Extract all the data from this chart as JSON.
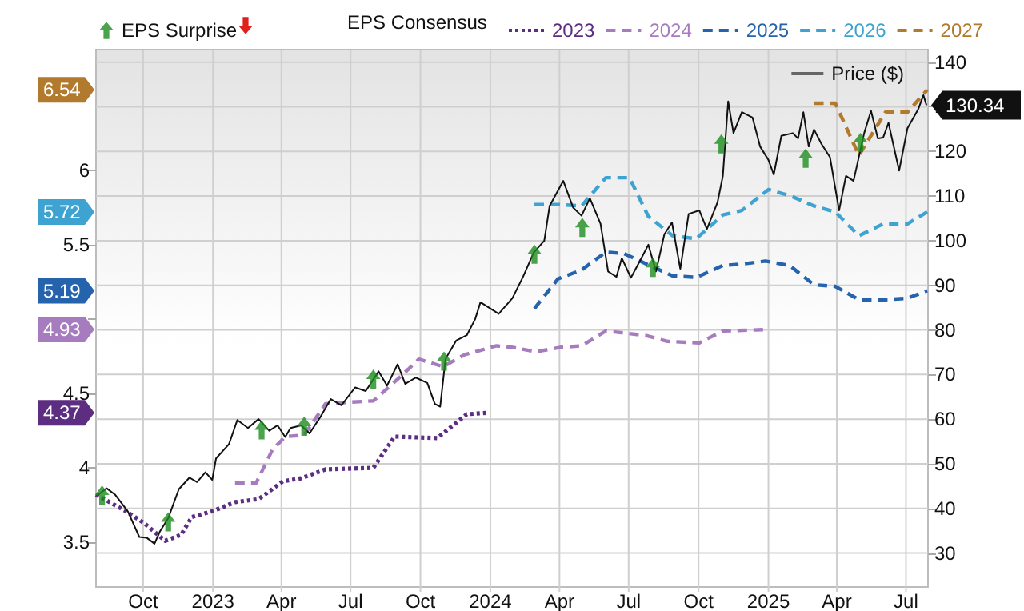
{
  "chart_data": {
    "type": "line",
    "legend_title": "EPS Consensus",
    "legend": "top",
    "grid": true,
    "xlim": [
      "2022-07-31",
      "2025-07-30"
    ],
    "xticks": [
      {
        "value": "2022-10-01",
        "label": "Oct"
      },
      {
        "value": "2023-01-01",
        "label": "2023"
      },
      {
        "value": "2023-04-01",
        "label": "Apr"
      },
      {
        "value": "2023-07-01",
        "label": "Jul"
      },
      {
        "value": "2023-10-01",
        "label": "Oct"
      },
      {
        "value": "2024-01-01",
        "label": "2024"
      },
      {
        "value": "2024-04-01",
        "label": "Apr"
      },
      {
        "value": "2024-07-01",
        "label": "Jul"
      },
      {
        "value": "2024-10-01",
        "label": "Oct"
      },
      {
        "value": "2025-01-01",
        "label": "2025"
      },
      {
        "value": "2025-04-01",
        "label": "Apr"
      },
      {
        "value": "2025-07-01",
        "label": "Jul"
      }
    ],
    "ylim": [
      3.2,
      6.81
    ],
    "yticks": [
      3.5,
      4,
      4.5,
      {
        "value": 5,
        "label": null
      },
      5.5,
      6
    ],
    "y2lim": [
      22.4,
      142.8
    ],
    "annotations": [
      "4.37",
      "4.93",
      "5.19",
      "5.72",
      "6.54"
    ],
    "y2ticks": [
      30,
      40,
      50,
      60,
      70,
      80,
      90,
      100,
      110,
      120,
      130,
      140
    ],
    "series": [
      {
        "name": "EPS Surprise",
        "type": "scatter",
        "axis": "y2",
        "marker": "triangle",
        "color": "#1e8c1e",
        "x": [
          "2022-08-08",
          "2022-11-03",
          "2023-03-06",
          "2023-05-01",
          "2023-07-31",
          "2023-11-01",
          "2024-02-28",
          "2024-05-01",
          "2024-08-02",
          "2024-10-31",
          "2025-02-19",
          "2025-05-02"
        ],
        "values": [
          43,
          37,
          57.6,
          58.4,
          69,
          73,
          97,
          103,
          94,
          121.7,
          118.5,
          122
        ]
      },
      {
        "name": "2023",
        "line_style": "dotted",
        "color": "#5c2d80",
        "x": [
          "2022-07-31",
          "2022-09-08",
          "2022-10-02",
          "2022-10-30",
          "2022-11-20",
          "2022-12-04",
          "2023-01-01",
          "2023-01-30",
          "2023-03-02",
          "2023-04-03",
          "2023-04-27",
          "2023-05-29",
          "2023-07-31",
          "2023-08-28",
          "2023-10-23",
          "2023-12-01",
          "2023-12-29"
        ],
        "values": [
          3.82,
          3.71,
          3.63,
          3.51,
          3.55,
          3.67,
          3.71,
          3.77,
          3.79,
          3.91,
          3.93,
          3.99,
          4.0,
          4.21,
          4.2,
          4.36,
          4.37
        ]
      },
      {
        "name": "2024",
        "line_style": "dashed",
        "color": "#a67cbf",
        "x": [
          "2023-01-30",
          "2023-02-27",
          "2023-03-20",
          "2023-04-06",
          "2023-05-01",
          "2023-05-29",
          "2023-06-26",
          "2023-07-31",
          "2023-09-04",
          "2023-09-29",
          "2023-10-31",
          "2023-11-28",
          "2024-01-09",
          "2024-01-30",
          "2024-03-01",
          "2024-04-02",
          "2024-04-30",
          "2024-06-01",
          "2024-07-23",
          "2024-08-21",
          "2024-10-02",
          "2024-11-02",
          "2025-01-01"
        ],
        "values": [
          3.9,
          3.9,
          4.12,
          4.21,
          4.22,
          4.43,
          4.44,
          4.45,
          4.61,
          4.73,
          4.68,
          4.76,
          4.82,
          4.81,
          4.78,
          4.81,
          4.82,
          4.92,
          4.89,
          4.85,
          4.84,
          4.92,
          4.93
        ]
      },
      {
        "name": "2025",
        "line_style": "dashed",
        "color": "#2563ad",
        "x": [
          "2024-02-28",
          "2024-03-30",
          "2024-04-30",
          "2024-06-01",
          "2024-06-25",
          "2024-07-16",
          "2024-08-28",
          "2024-09-28",
          "2024-11-02",
          "2024-11-27",
          "2024-12-28",
          "2025-01-29",
          "2025-03-02",
          "2025-03-30",
          "2025-04-30",
          "2025-06-04",
          "2025-07-03",
          "2025-07-29"
        ],
        "values": [
          5.07,
          5.27,
          5.33,
          5.45,
          5.44,
          5.39,
          5.29,
          5.28,
          5.36,
          5.37,
          5.39,
          5.36,
          5.23,
          5.22,
          5.13,
          5.13,
          5.14,
          5.19
        ]
      },
      {
        "name": "2026",
        "line_style": "dashed",
        "color": "#3ea3d0",
        "x": [
          "2024-02-28",
          "2024-03-30",
          "2024-04-30",
          "2024-06-01",
          "2024-07-02",
          "2024-07-27",
          "2024-08-28",
          "2024-09-28",
          "2024-11-02",
          "2024-11-27",
          "2025-01-01",
          "2025-01-29",
          "2025-03-02",
          "2025-03-30",
          "2025-04-30",
          "2025-06-01",
          "2025-07-03",
          "2025-07-29"
        ],
        "values": [
          5.77,
          5.77,
          5.76,
          5.95,
          5.95,
          5.69,
          5.56,
          5.54,
          5.7,
          5.73,
          5.87,
          5.83,
          5.76,
          5.72,
          5.56,
          5.64,
          5.64,
          5.72
        ]
      },
      {
        "name": "2027",
        "line_style": "dashed",
        "color": "#b27a2c",
        "x": [
          "2025-03-02",
          "2025-03-30",
          "2025-04-30",
          "2025-06-04",
          "2025-07-03",
          "2025-07-29"
        ],
        "values": [
          6.45,
          6.45,
          6.1,
          6.39,
          6.39,
          6.54
        ]
      },
      {
        "name": "Price ($)",
        "axis": "y2",
        "line_style": "solid",
        "color": "#111111",
        "x": [
          "2022-08-03",
          "2022-08-14",
          "2022-08-25",
          "2022-09-11",
          "2022-09-26",
          "2022-10-06",
          "2022-10-16",
          "2022-10-23",
          "2022-11-03",
          "2022-11-17",
          "2022-12-01",
          "2022-12-11",
          "2022-12-22",
          "2022-12-31",
          "2023-01-05",
          "2023-01-22",
          "2023-02-02",
          "2023-02-16",
          "2023-03-02",
          "2023-03-16",
          "2023-03-27",
          "2023-04-06",
          "2023-04-13",
          "2023-04-27",
          "2023-05-08",
          "2023-05-22",
          "2023-06-05",
          "2023-06-19",
          "2023-07-07",
          "2023-07-21",
          "2023-08-07",
          "2023-08-18",
          "2023-09-01",
          "2023-09-11",
          "2023-09-25",
          "2023-10-10",
          "2023-10-20",
          "2023-10-27",
          "2023-11-03",
          "2023-11-17",
          "2023-12-01",
          "2023-12-12",
          "2023-12-19",
          "2024-01-12",
          "2024-01-30",
          "2024-02-13",
          "2024-02-27",
          "2024-03-12",
          "2024-03-19",
          "2024-04-06",
          "2024-04-19",
          "2024-04-30",
          "2024-05-11",
          "2024-05-25",
          "2024-06-04",
          "2024-06-15",
          "2024-06-22",
          "2024-07-04",
          "2024-07-16",
          "2024-07-27",
          "2024-08-06",
          "2024-08-17",
          "2024-08-27",
          "2024-09-07",
          "2024-09-18",
          "2024-10-02",
          "2024-10-12",
          "2024-10-26",
          "2024-11-02",
          "2024-11-09",
          "2024-11-16",
          "2024-11-27",
          "2024-12-11",
          "2024-12-21",
          "2025-01-01",
          "2025-01-08",
          "2025-01-18",
          "2025-02-02",
          "2025-02-09",
          "2025-02-16",
          "2025-02-23",
          "2025-03-02",
          "2025-03-12",
          "2025-03-23",
          "2025-04-04",
          "2025-04-13",
          "2025-04-23",
          "2025-05-07",
          "2025-05-16",
          "2025-05-25",
          "2025-06-01",
          "2025-06-08",
          "2025-06-22",
          "2025-07-03",
          "2025-07-17",
          "2025-07-24",
          "2025-07-28"
        ],
        "values": [
          43.1,
          44.5,
          43.1,
          39.3,
          33.6,
          33.4,
          32.1,
          34.8,
          37.8,
          44.3,
          46.9,
          45.9,
          48.1,
          46.4,
          51.2,
          54.4,
          59.8,
          58,
          60,
          57.4,
          58.6,
          56,
          58,
          58.6,
          56.8,
          60.4,
          64.5,
          63.1,
          67.1,
          66.3,
          70.7,
          67.5,
          72.3,
          67.9,
          69.3,
          68.1,
          63.4,
          62.8,
          73.5,
          77.6,
          78.8,
          82.4,
          86.2,
          83.6,
          87.1,
          91.9,
          97.3,
          100,
          107.8,
          113.4,
          107.4,
          105.6,
          109.5,
          103.8,
          93.1,
          91.9,
          96.1,
          91.7,
          95.5,
          99.1,
          93.1,
          101.4,
          104.1,
          93.7,
          106,
          106.8,
          102.6,
          108.6,
          114.5,
          131.2,
          124.1,
          128.8,
          127.6,
          121.1,
          118.1,
          114.8,
          123.5,
          124.1,
          122.9,
          128.8,
          121.1,
          124.9,
          121.6,
          118.7,
          106.8,
          114.5,
          113.4,
          124.1,
          129.1,
          122.9,
          123.1,
          126.4,
          115.7,
          125.2,
          129.4,
          132.6,
          130.34
        ],
        "value_labels": [
          null,
          null,
          null,
          null,
          null,
          null,
          null,
          null,
          null,
          null,
          null,
          null,
          null,
          null,
          null,
          null,
          null,
          null,
          null,
          null,
          null,
          null,
          null,
          null,
          null,
          null,
          null,
          null,
          null,
          null,
          null,
          null,
          null,
          null,
          null,
          null,
          null,
          null,
          null,
          null,
          null,
          null,
          null,
          null,
          null,
          null,
          null,
          null,
          null,
          null,
          null,
          null,
          null,
          null,
          null,
          null,
          null,
          null,
          null,
          null,
          null,
          null,
          null,
          null,
          null,
          null,
          null,
          null,
          null,
          null,
          null,
          null,
          null,
          null,
          null,
          null,
          null,
          null,
          null,
          null,
          null,
          null,
          null,
          null,
          null,
          null,
          null,
          null,
          null,
          null,
          null,
          null,
          null,
          null,
          null,
          null,
          "130.34"
        ]
      }
    ]
  }
}
